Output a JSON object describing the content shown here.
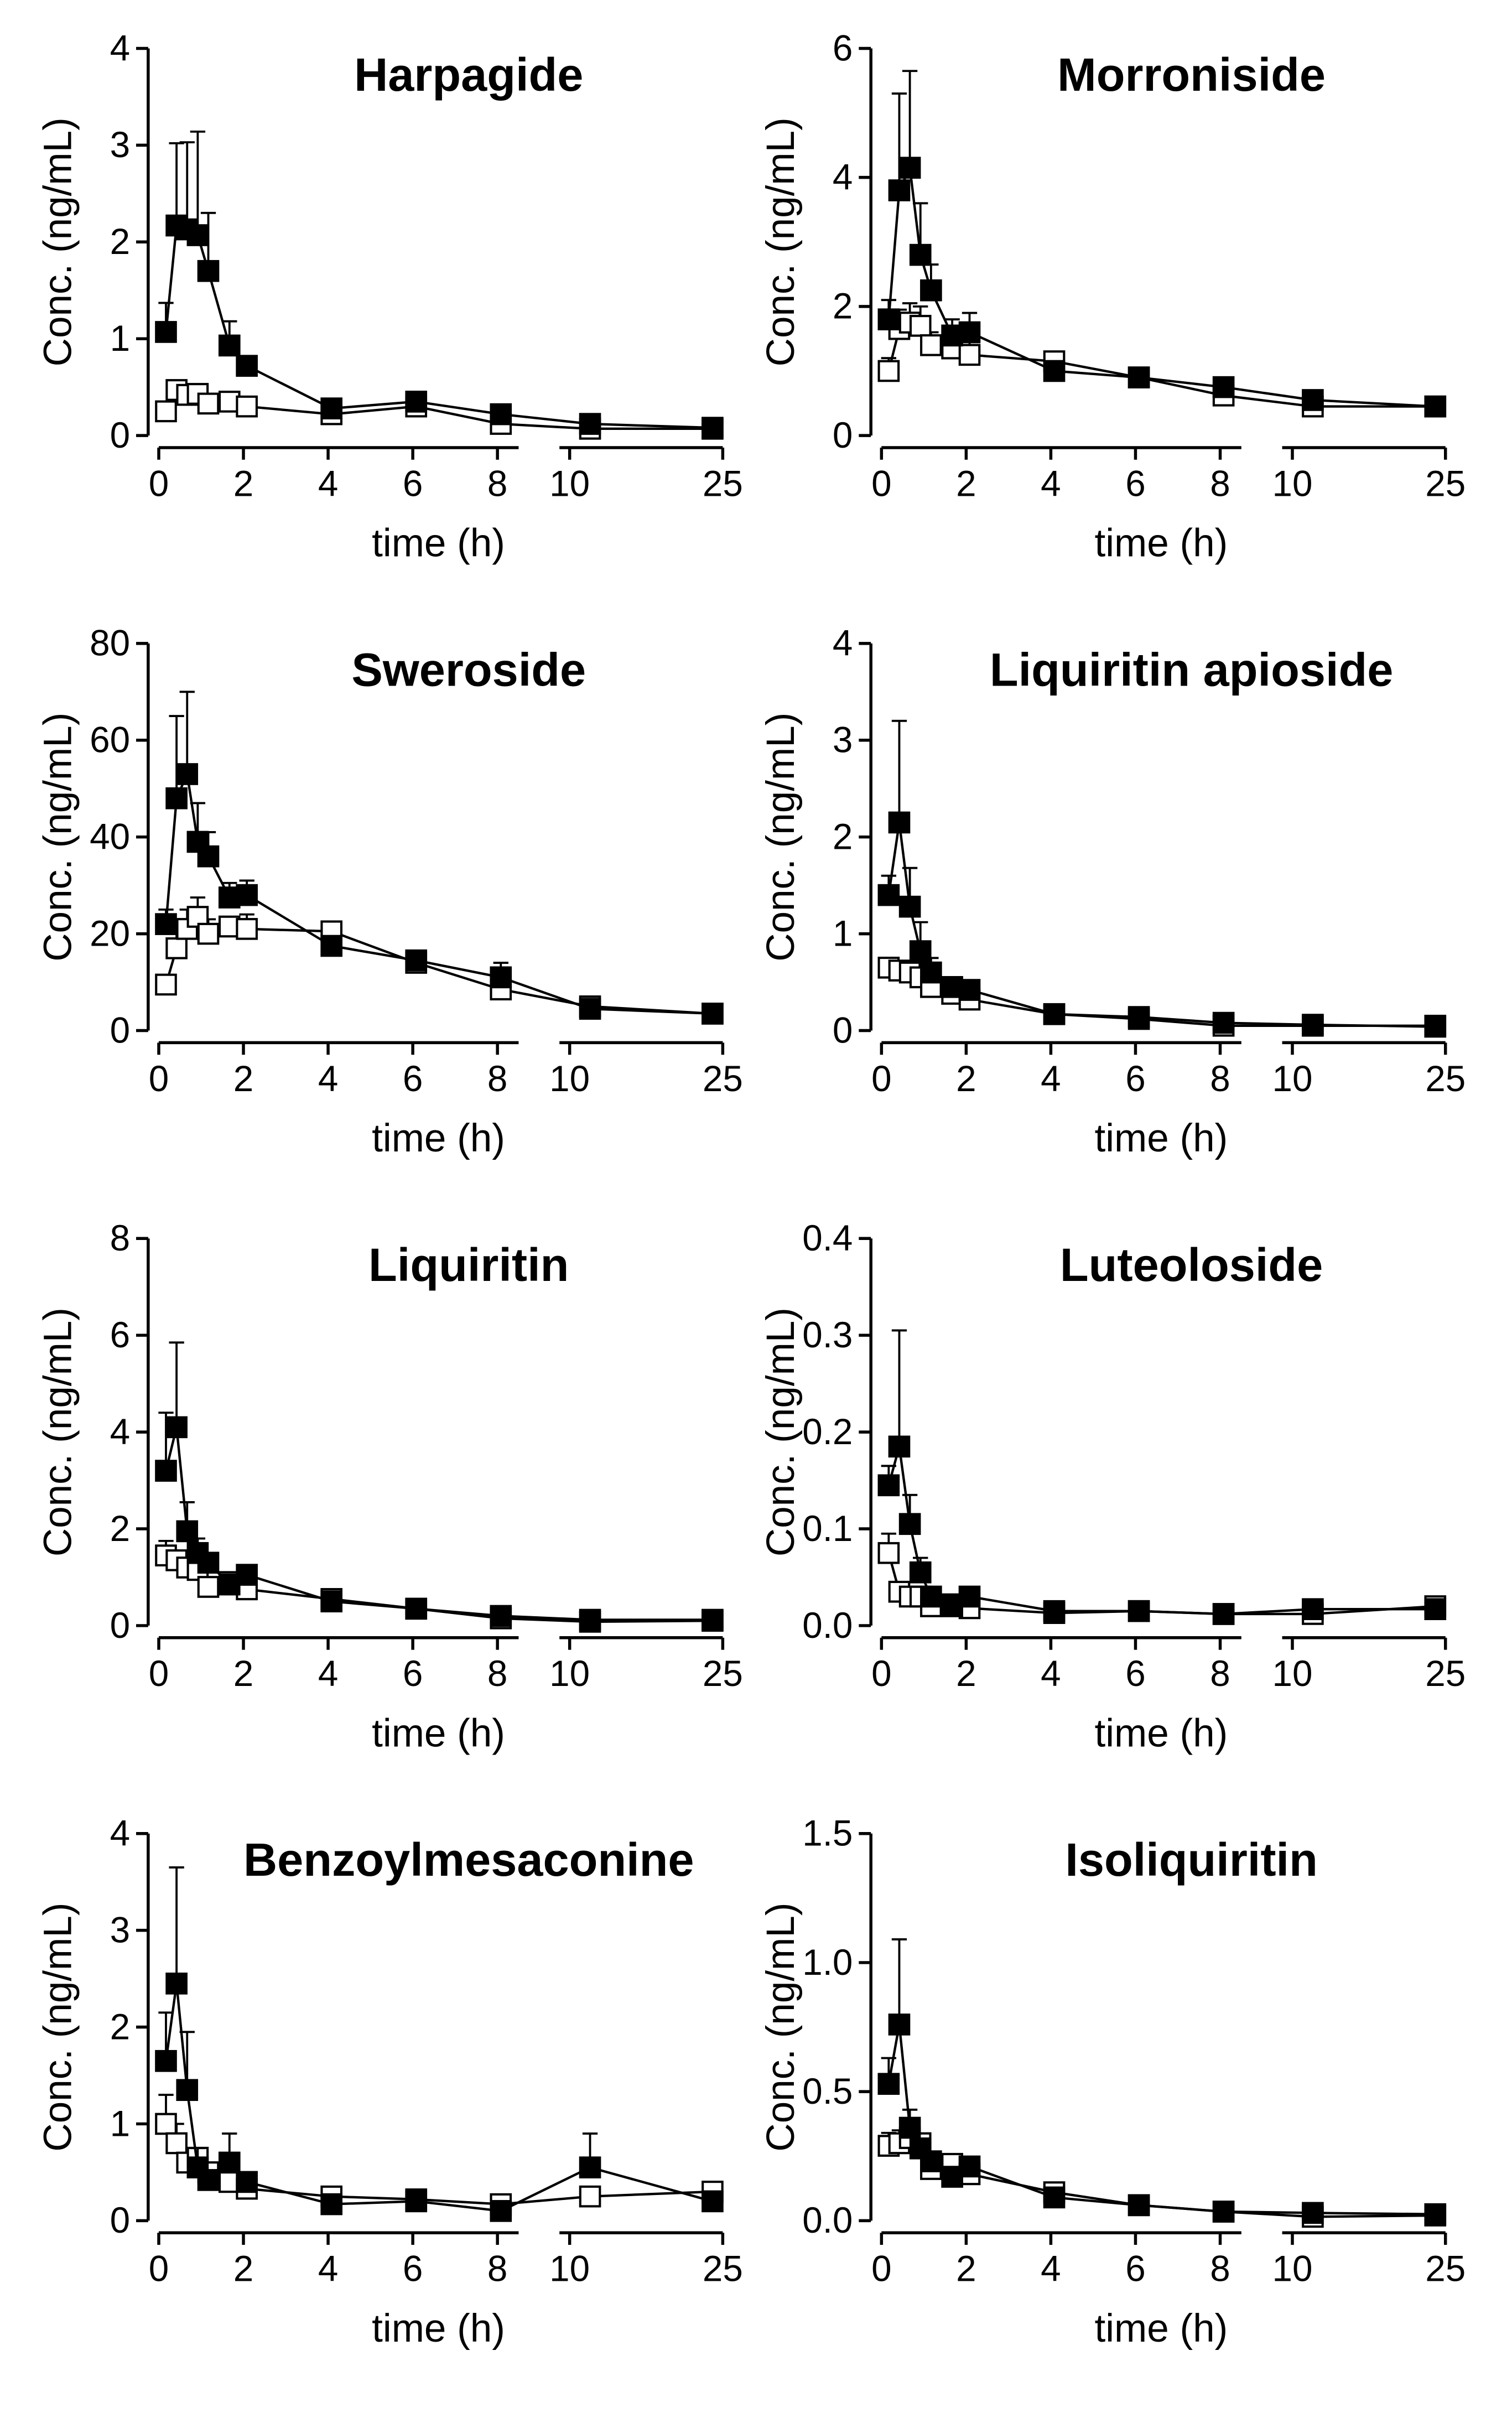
{
  "chart_data": [
    {
      "type": "line",
      "title": "Harpagide",
      "ylabel": "Conc. (ng/mL)",
      "xlabel": "time (h)",
      "x": [
        0.17,
        0.42,
        0.67,
        0.92,
        1.17,
        1.67,
        2.08,
        4.08,
        6.08,
        8.08,
        12,
        24
      ],
      "xlim": [
        [
          0,
          8.5
        ],
        [
          9,
          25
        ]
      ],
      "xticks": [
        [
          0,
          2,
          4,
          6,
          8
        ],
        [
          10,
          25
        ]
      ],
      "ylim": [
        0,
        4
      ],
      "yticks": [
        0,
        1,
        2,
        3,
        4
      ],
      "series": [
        {
          "color": "#000000",
          "fill": "#ffffff",
          "values": [
            0.25,
            0.47,
            0.42,
            0.43,
            0.33,
            0.35,
            0.3,
            0.22,
            0.3,
            0.12,
            0.07,
            0.07
          ],
          "errors": [
            0.05,
            0.08,
            0.06,
            0.06,
            null,
            null,
            null,
            null,
            null,
            null,
            null,
            null
          ]
        },
        {
          "color": "#000000",
          "fill": "#000000",
          "values": [
            1.07,
            2.17,
            2.13,
            2.07,
            1.7,
            0.93,
            0.72,
            0.28,
            0.35,
            0.22,
            0.12,
            0.08
          ],
          "errors": [
            0.3,
            0.85,
            0.9,
            1.07,
            0.6,
            0.25,
            0.1,
            null,
            null,
            null,
            null,
            null
          ]
        }
      ]
    },
    {
      "type": "line",
      "title": "Morroniside",
      "ylabel": "Conc. (ng/mL)",
      "xlabel": "time (h)",
      "x": [
        0.17,
        0.42,
        0.67,
        0.92,
        1.17,
        1.67,
        2.08,
        4.08,
        6.08,
        8.08,
        12,
        24
      ],
      "xlim": [
        [
          0,
          8.5
        ],
        [
          9,
          25
        ]
      ],
      "xticks": [
        [
          0,
          2,
          4,
          6,
          8
        ],
        [
          10,
          25
        ]
      ],
      "ylim": [
        0,
        6
      ],
      "yticks": [
        0,
        2,
        4,
        6
      ],
      "series": [
        {
          "color": "#000000",
          "fill": "#ffffff",
          "values": [
            1.0,
            1.65,
            1.75,
            1.7,
            1.4,
            1.35,
            1.25,
            1.15,
            0.9,
            0.62,
            0.45,
            0.45
          ],
          "errors": [
            0.2,
            0.3,
            0.3,
            0.3,
            0.2,
            0.2,
            0.25,
            null,
            null,
            null,
            null,
            null
          ]
        },
        {
          "color": "#000000",
          "fill": "#000000",
          "values": [
            1.8,
            3.8,
            4.15,
            2.8,
            2.25,
            1.55,
            1.6,
            1.0,
            0.9,
            0.75,
            0.55,
            0.45
          ],
          "errors": [
            0.3,
            1.5,
            1.5,
            0.8,
            0.4,
            0.25,
            0.3,
            null,
            null,
            null,
            null,
            null
          ]
        }
      ]
    },
    {
      "type": "line",
      "title": "Sweroside",
      "ylabel": "Conc. (ng/mL)",
      "xlabel": "time (h)",
      "x": [
        0.17,
        0.42,
        0.67,
        0.92,
        1.17,
        1.67,
        2.08,
        4.08,
        6.08,
        8.08,
        12,
        24
      ],
      "xlim": [
        [
          0,
          8.5
        ],
        [
          9,
          25
        ]
      ],
      "xticks": [
        [
          0,
          2,
          4,
          6,
          8
        ],
        [
          10,
          25
        ]
      ],
      "ylim": [
        0,
        80
      ],
      "yticks": [
        0,
        20,
        40,
        60,
        80
      ],
      "series": [
        {
          "color": "#000000",
          "fill": "#ffffff",
          "values": [
            9.5,
            17,
            21,
            23.5,
            20,
            21.5,
            21,
            20.5,
            14,
            8.5,
            5,
            3.5
          ],
          "errors": [
            2,
            3,
            4,
            4,
            3,
            2,
            3,
            1,
            null,
            null,
            null,
            null
          ]
        },
        {
          "color": "#000000",
          "fill": "#000000",
          "values": [
            22,
            48,
            53,
            39,
            36,
            27.5,
            28,
            17.5,
            14.5,
            11,
            4.5,
            3.5
          ],
          "errors": [
            3,
            17,
            17,
            8,
            5,
            3,
            3,
            1.5,
            2,
            3,
            null,
            null
          ]
        }
      ]
    },
    {
      "type": "line",
      "title": "Liquiritin apioside",
      "ylabel": "Conc. (ng/mL)",
      "xlabel": "time (h)",
      "x": [
        0.17,
        0.42,
        0.67,
        0.92,
        1.17,
        1.67,
        2.08,
        4.08,
        6.08,
        8.08,
        12,
        24
      ],
      "xlim": [
        [
          0,
          8.5
        ],
        [
          9,
          25
        ]
      ],
      "xticks": [
        [
          0,
          2,
          4,
          6,
          8
        ],
        [
          10,
          25
        ]
      ],
      "ylim": [
        0,
        4
      ],
      "yticks": [
        0,
        1,
        2,
        3,
        4
      ],
      "series": [
        {
          "color": "#000000",
          "fill": "#ffffff",
          "values": [
            0.65,
            0.62,
            0.6,
            0.55,
            0.45,
            0.38,
            0.32,
            0.17,
            0.12,
            0.05,
            0.05,
            0.05
          ],
          "errors": [
            0.1,
            0.1,
            0.1,
            0.08,
            null,
            null,
            null,
            null,
            null,
            null,
            null,
            null
          ]
        },
        {
          "color": "#000000",
          "fill": "#000000",
          "values": [
            1.4,
            2.15,
            1.28,
            0.82,
            0.6,
            0.45,
            0.42,
            0.17,
            0.14,
            0.08,
            0.06,
            0.04
          ],
          "errors": [
            0.2,
            1.05,
            0.4,
            0.3,
            0.15,
            null,
            null,
            null,
            null,
            null,
            null,
            null
          ]
        }
      ]
    },
    {
      "type": "line",
      "title": "Liquiritin",
      "ylabel": "Conc. (ng/mL)",
      "xlabel": "time (h)",
      "x": [
        0.17,
        0.42,
        0.67,
        0.92,
        1.17,
        1.67,
        2.08,
        4.08,
        6.08,
        8.08,
        12,
        24
      ],
      "xlim": [
        [
          0,
          8.5
        ],
        [
          9,
          25
        ]
      ],
      "xticks": [
        [
          0,
          2,
          4,
          6,
          8
        ],
        [
          10,
          25
        ]
      ],
      "ylim": [
        0,
        8
      ],
      "yticks": [
        0,
        2,
        4,
        6,
        8
      ],
      "series": [
        {
          "color": "#000000",
          "fill": "#ffffff",
          "values": [
            1.45,
            1.35,
            1.2,
            1.15,
            0.8,
            0.9,
            0.75,
            0.55,
            0.35,
            0.15,
            0.08,
            0.1
          ],
          "errors": [
            0.3,
            0.2,
            0.2,
            null,
            null,
            null,
            null,
            null,
            null,
            null,
            null,
            null
          ]
        },
        {
          "color": "#000000",
          "fill": "#000000",
          "values": [
            3.2,
            4.1,
            1.95,
            1.5,
            1.3,
            0.85,
            1.05,
            0.5,
            0.35,
            0.2,
            0.12,
            0.12
          ],
          "errors": [
            1.2,
            1.75,
            0.6,
            0.3,
            null,
            null,
            null,
            null,
            null,
            null,
            null,
            null
          ]
        }
      ]
    },
    {
      "type": "line",
      "title": "Luteoloside",
      "ylabel": "Conc. (ng/mL)",
      "xlabel": "time (h)",
      "x": [
        0.17,
        0.42,
        0.67,
        0.92,
        1.17,
        1.67,
        2.08,
        4.08,
        6.08,
        8.08,
        12,
        24
      ],
      "xlim": [
        [
          0,
          8.5
        ],
        [
          9,
          25
        ]
      ],
      "xticks": [
        [
          0,
          2,
          4,
          6,
          8
        ],
        [
          10,
          25
        ]
      ],
      "ylim": [
        0,
        0.4
      ],
      "yticks": [
        {
          "value": 0,
          "label": "0.0"
        },
        0.1,
        0.2,
        0.3,
        0.4
      ],
      "series": [
        {
          "color": "#000000",
          "fill": "#ffffff",
          "values": [
            0.075,
            0.035,
            0.03,
            0.03,
            0.02,
            0.022,
            0.018,
            0.013,
            0.015,
            0.012,
            0.012,
            0.02
          ],
          "errors": [
            0.02,
            null,
            null,
            null,
            null,
            null,
            null,
            null,
            null,
            null,
            null,
            null
          ]
        },
        {
          "color": "#000000",
          "fill": "#000000",
          "values": [
            0.145,
            0.185,
            0.105,
            0.055,
            0.03,
            0.02,
            0.03,
            0.015,
            0.015,
            0.012,
            0.017,
            0.017
          ],
          "errors": [
            0.02,
            0.12,
            0.03,
            0.015,
            null,
            null,
            null,
            null,
            null,
            null,
            null,
            null
          ]
        }
      ]
    },
    {
      "type": "line",
      "title": "Benzoylmesaconine",
      "ylabel": "Conc. (ng/mL)",
      "xlabel": "time (h)",
      "x": [
        0.17,
        0.42,
        0.67,
        0.92,
        1.17,
        1.67,
        2.08,
        4.08,
        6.08,
        8.08,
        12,
        24
      ],
      "xlim": [
        [
          0,
          8.5
        ],
        [
          9,
          25
        ]
      ],
      "xticks": [
        [
          0,
          2,
          4,
          6,
          8
        ],
        [
          10,
          25
        ]
      ],
      "ylim": [
        0,
        4
      ],
      "yticks": [
        0,
        1,
        2,
        3,
        4
      ],
      "series": [
        {
          "color": "#000000",
          "fill": "#ffffff",
          "values": [
            1.0,
            0.8,
            0.6,
            0.65,
            0.5,
            0.4,
            0.33,
            0.25,
            0.22,
            0.17,
            0.25,
            0.3
          ],
          "errors": [
            0.3,
            0.2,
            null,
            null,
            null,
            null,
            null,
            null,
            null,
            null,
            null,
            null
          ]
        },
        {
          "color": "#000000",
          "fill": "#000000",
          "values": [
            1.65,
            2.45,
            1.35,
            0.55,
            0.42,
            0.6,
            0.4,
            0.17,
            0.2,
            0.1,
            0.55,
            0.2
          ],
          "errors": [
            0.5,
            1.2,
            0.6,
            0.2,
            0.1,
            0.3,
            0.1,
            null,
            null,
            0.05,
            0.35,
            null
          ]
        }
      ]
    },
    {
      "type": "line",
      "title": "Isoliquiritin",
      "ylabel": "Conc. (ng/mL)",
      "xlabel": "time (h)",
      "x": [
        0.17,
        0.42,
        0.67,
        0.92,
        1.17,
        1.67,
        2.08,
        4.08,
        6.08,
        8.08,
        12,
        24
      ],
      "xlim": [
        [
          0,
          8.5
        ],
        [
          9,
          25
        ]
      ],
      "xticks": [
        [
          0,
          2,
          4,
          6,
          8
        ],
        [
          10,
          25
        ]
      ],
      "ylim": [
        0,
        1.5
      ],
      "yticks": [
        {
          "value": 0,
          "label": "0.0"
        },
        0.5,
        {
          "value": 1,
          "label": "1.0"
        },
        1.5
      ],
      "series": [
        {
          "color": "#000000",
          "fill": "#ffffff",
          "values": [
            0.29,
            0.3,
            0.32,
            0.3,
            0.2,
            0.22,
            0.18,
            0.11,
            0.06,
            0.035,
            0.015,
            0.02
          ],
          "errors": [
            0.05,
            0.05,
            null,
            null,
            null,
            null,
            null,
            null,
            null,
            null,
            null,
            null
          ]
        },
        {
          "color": "#000000",
          "fill": "#000000",
          "values": [
            0.53,
            0.76,
            0.36,
            0.28,
            0.23,
            0.17,
            0.21,
            0.09,
            0.06,
            0.035,
            0.03,
            0.025
          ],
          "errors": [
            0.1,
            0.33,
            0.07,
            null,
            null,
            null,
            null,
            null,
            null,
            null,
            null,
            null
          ]
        }
      ]
    }
  ]
}
